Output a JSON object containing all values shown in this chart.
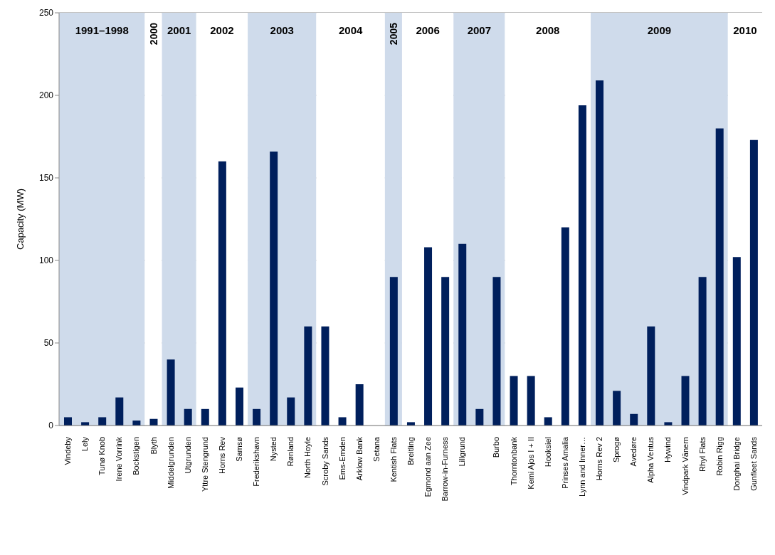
{
  "chart_data": {
    "type": "bar",
    "ylabel": "Capacity (MW)",
    "categories": [
      "Vindeby",
      "Lely",
      "Tunø Knob",
      "Irene Vorrink",
      "Bockstigen",
      "Blyth",
      "Middelgrunden",
      "Utgrunden",
      "Yttre Stengrund",
      "Horns Rev",
      "Samsø",
      "Frederikshavn",
      "Nysted",
      "Rønland",
      "North Hoyle",
      "Scroby Sands",
      "Ems-Emden",
      "Arklow Bank",
      "Setana",
      "Kentish Flats",
      "Breitling",
      "Egmond aan Zee",
      "Barrow-in-Furness",
      "Lillgrund",
      null,
      "Burbo",
      "Thorntonbank",
      "Kemi Ajos I + II",
      "Hooksiel",
      "Prinses Amalia",
      "Lynn and Inner…",
      "Horns Rev 2",
      "Sprogø",
      "Avedøre",
      "Alpha Ventus",
      "Hywind",
      "Vindpark Vänern",
      "Rhyl Flats",
      "Robin Rigg",
      "Donghai Bridge",
      "Gunfleet Sands"
    ],
    "values": [
      5,
      2,
      5,
      17,
      3,
      4,
      40,
      10,
      10,
      160,
      23,
      10,
      166,
      17,
      60,
      60,
      5,
      25,
      0,
      90,
      2,
      108,
      90,
      110,
      10,
      90,
      30,
      30,
      5,
      120,
      194,
      209,
      21,
      7,
      60,
      2,
      30,
      90,
      180,
      102,
      173
    ],
    "color": "#001f5c",
    "ylim": [
      0,
      250
    ],
    "yticks": [
      0,
      50,
      100,
      150,
      200,
      250
    ],
    "grid": "y",
    "bands": [
      {
        "axis": "x",
        "from": "Vindeby",
        "to": "Bockstigen",
        "label": "1991–1998",
        "color": "#cfdbeb"
      },
      {
        "axis": "x",
        "from": "Blyth",
        "to": "Blyth",
        "label": "2000",
        "color": "#ffffff"
      },
      {
        "axis": "x",
        "from": "Middelgrunden",
        "to": "Utgrunden",
        "label": "2001",
        "color": "#cfdbeb"
      },
      {
        "axis": "x",
        "from": "Yttre Stengrund",
        "to": "Samsø",
        "label": "2002",
        "color": "#ffffff"
      },
      {
        "axis": "x",
        "from": "Frederikshavn",
        "to": "North Hoyle",
        "label": "2003",
        "color": "#cfdbeb"
      },
      {
        "axis": "x",
        "from": "Scroby Sands",
        "to": "Setana",
        "label": "2004",
        "color": "#ffffff"
      },
      {
        "axis": "x",
        "from": "Kentish Flats",
        "to": "Kentish Flats",
        "label": "2005",
        "color": "#cfdbeb"
      },
      {
        "axis": "x",
        "from": "Breitling",
        "to": "Barrow-in-Furness",
        "label": "2006",
        "color": "#ffffff"
      },
      {
        "axis": "x",
        "from": "Lillgrund",
        "to": "Burbo",
        "label": "2007",
        "color": "#cfdbeb"
      },
      {
        "axis": "x",
        "from": "Thorntonbank",
        "to": "Lynn and Inner…",
        "label": "2008",
        "color": "#ffffff"
      },
      {
        "axis": "x",
        "from": "Horns Rev 2",
        "to": "Robin Rigg",
        "label": "2009",
        "color": "#cfdbeb"
      },
      {
        "axis": "x",
        "from": "Donghai Bridge",
        "to": "Gunfleet Sands",
        "label": "2010",
        "color": "#ffffff"
      }
    ]
  }
}
